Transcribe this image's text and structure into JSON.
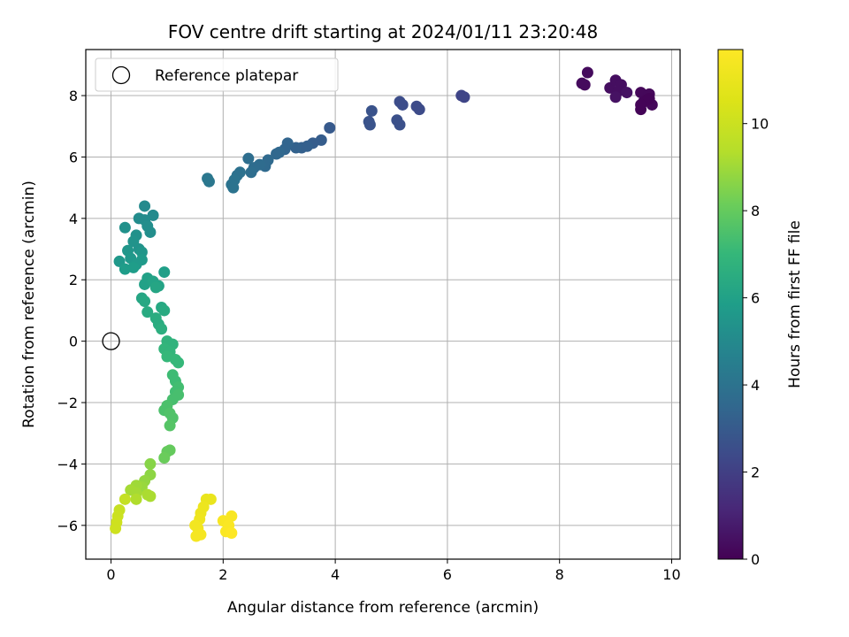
{
  "chart_data": {
    "type": "scatter",
    "title": "FOV centre drift starting at 2024/01/11 23:20:48",
    "xlabel": "Angular distance from reference (arcmin)",
    "ylabel": "Rotation from reference (arcmin)",
    "xlim": [
      -0.45,
      10.15
    ],
    "ylim": [
      -7.1,
      9.5
    ],
    "xticks": [
      0,
      2,
      4,
      6,
      8,
      10
    ],
    "yticks": [
      -6,
      -4,
      -2,
      0,
      2,
      4,
      6,
      8
    ],
    "grid": true,
    "legend": {
      "placement": "upper-left",
      "entries": [
        "Reference platepar"
      ]
    },
    "reference_point": {
      "x": 0,
      "y": 0,
      "label": "Reference platepar"
    },
    "colorbar": {
      "label": "Hours from first FF file",
      "colormap": "viridis",
      "range": [
        0,
        11.7
      ],
      "ticks": [
        0,
        2,
        4,
        6,
        8,
        10
      ]
    },
    "points": [
      {
        "x": 8.5,
        "y": 8.75,
        "c": 0.3
      },
      {
        "x": 8.4,
        "y": 8.4,
        "c": 0.3
      },
      {
        "x": 8.45,
        "y": 8.35,
        "c": 0.3
      },
      {
        "x": 8.9,
        "y": 8.25,
        "c": 0.4
      },
      {
        "x": 9.0,
        "y": 8.5,
        "c": 0.4
      },
      {
        "x": 9.1,
        "y": 8.35,
        "c": 0.4
      },
      {
        "x": 9.05,
        "y": 8.15,
        "c": 0.4
      },
      {
        "x": 9.2,
        "y": 8.1,
        "c": 0.5
      },
      {
        "x": 9.0,
        "y": 7.95,
        "c": 0.5
      },
      {
        "x": 9.45,
        "y": 8.1,
        "c": 0.2
      },
      {
        "x": 9.6,
        "y": 8.05,
        "c": 0.2
      },
      {
        "x": 9.5,
        "y": 7.8,
        "c": 0.2
      },
      {
        "x": 9.65,
        "y": 7.7,
        "c": 0.2
      },
      {
        "x": 9.45,
        "y": 7.55,
        "c": 0.1
      },
      {
        "x": 9.55,
        "y": 7.85,
        "c": 0.1
      },
      {
        "x": 9.6,
        "y": 7.9,
        "c": 0.1
      },
      {
        "x": 9.45,
        "y": 7.7,
        "c": 0.1
      },
      {
        "x": 6.25,
        "y": 8.0,
        "c": 2.2
      },
      {
        "x": 6.3,
        "y": 7.95,
        "c": 2.2
      },
      {
        "x": 5.15,
        "y": 7.8,
        "c": 2.5
      },
      {
        "x": 5.2,
        "y": 7.7,
        "c": 2.5
      },
      {
        "x": 5.45,
        "y": 7.65,
        "c": 2.4
      },
      {
        "x": 5.5,
        "y": 7.55,
        "c": 2.4
      },
      {
        "x": 5.1,
        "y": 7.2,
        "c": 2.6
      },
      {
        "x": 5.15,
        "y": 7.05,
        "c": 2.6
      },
      {
        "x": 4.65,
        "y": 7.5,
        "c": 2.7
      },
      {
        "x": 4.6,
        "y": 7.15,
        "c": 2.7
      },
      {
        "x": 4.62,
        "y": 7.05,
        "c": 2.7
      },
      {
        "x": 3.9,
        "y": 6.95,
        "c": 3.0
      },
      {
        "x": 3.75,
        "y": 6.55,
        "c": 3.1
      },
      {
        "x": 3.6,
        "y": 6.45,
        "c": 3.1
      },
      {
        "x": 3.5,
        "y": 6.35,
        "c": 3.2
      },
      {
        "x": 3.4,
        "y": 6.3,
        "c": 3.2
      },
      {
        "x": 3.3,
        "y": 6.3,
        "c": 3.3
      },
      {
        "x": 3.15,
        "y": 6.45,
        "c": 3.4
      },
      {
        "x": 3.1,
        "y": 6.25,
        "c": 3.4
      },
      {
        "x": 3.0,
        "y": 6.15,
        "c": 3.5
      },
      {
        "x": 2.95,
        "y": 6.1,
        "c": 3.5
      },
      {
        "x": 2.8,
        "y": 5.9,
        "c": 3.6
      },
      {
        "x": 2.75,
        "y": 5.7,
        "c": 3.6
      },
      {
        "x": 2.65,
        "y": 5.75,
        "c": 3.7
      },
      {
        "x": 2.55,
        "y": 5.65,
        "c": 3.7
      },
      {
        "x": 2.5,
        "y": 5.5,
        "c": 3.8
      },
      {
        "x": 2.45,
        "y": 5.95,
        "c": 3.8
      },
      {
        "x": 2.3,
        "y": 5.5,
        "c": 3.9
      },
      {
        "x": 2.25,
        "y": 5.4,
        "c": 3.9
      },
      {
        "x": 2.2,
        "y": 5.25,
        "c": 4.0
      },
      {
        "x": 2.15,
        "y": 5.1,
        "c": 4.0
      },
      {
        "x": 2.18,
        "y": 5.0,
        "c": 4.0
      },
      {
        "x": 1.72,
        "y": 5.3,
        "c": 4.2
      },
      {
        "x": 1.75,
        "y": 5.2,
        "c": 4.2
      },
      {
        "x": 0.6,
        "y": 4.4,
        "c": 5.0
      },
      {
        "x": 0.75,
        "y": 4.1,
        "c": 5.0
      },
      {
        "x": 0.5,
        "y": 4.0,
        "c": 5.1
      },
      {
        "x": 0.6,
        "y": 3.95,
        "c": 5.1
      },
      {
        "x": 0.65,
        "y": 3.75,
        "c": 5.2
      },
      {
        "x": 0.7,
        "y": 3.55,
        "c": 5.2
      },
      {
        "x": 0.25,
        "y": 3.7,
        "c": 5.3
      },
      {
        "x": 0.45,
        "y": 3.45,
        "c": 5.3
      },
      {
        "x": 0.4,
        "y": 3.25,
        "c": 5.4
      },
      {
        "x": 0.5,
        "y": 3.0,
        "c": 5.4
      },
      {
        "x": 0.55,
        "y": 2.9,
        "c": 5.5
      },
      {
        "x": 0.3,
        "y": 2.95,
        "c": 5.5
      },
      {
        "x": 0.35,
        "y": 2.7,
        "c": 5.6
      },
      {
        "x": 0.15,
        "y": 2.6,
        "c": 5.6
      },
      {
        "x": 0.45,
        "y": 2.5,
        "c": 5.7
      },
      {
        "x": 0.55,
        "y": 2.65,
        "c": 5.7
      },
      {
        "x": 0.25,
        "y": 2.35,
        "c": 5.8
      },
      {
        "x": 0.4,
        "y": 2.4,
        "c": 5.8
      },
      {
        "x": 0.95,
        "y": 2.25,
        "c": 5.9
      },
      {
        "x": 0.65,
        "y": 2.05,
        "c": 6.0
      },
      {
        "x": 0.6,
        "y": 1.85,
        "c": 6.0
      },
      {
        "x": 0.75,
        "y": 1.95,
        "c": 6.1
      },
      {
        "x": 0.85,
        "y": 1.8,
        "c": 6.1
      },
      {
        "x": 0.8,
        "y": 1.75,
        "c": 6.2
      },
      {
        "x": 0.55,
        "y": 1.4,
        "c": 6.2
      },
      {
        "x": 0.6,
        "y": 1.3,
        "c": 6.3
      },
      {
        "x": 0.9,
        "y": 1.1,
        "c": 6.3
      },
      {
        "x": 0.95,
        "y": 1.0,
        "c": 6.4
      },
      {
        "x": 0.65,
        "y": 0.95,
        "c": 6.4
      },
      {
        "x": 0.8,
        "y": 0.75,
        "c": 6.5
      },
      {
        "x": 0.85,
        "y": 0.55,
        "c": 6.5
      },
      {
        "x": 0.9,
        "y": 0.4,
        "c": 6.6
      },
      {
        "x": 1.0,
        "y": 0.0,
        "c": 6.8
      },
      {
        "x": 1.1,
        "y": -0.1,
        "c": 6.8
      },
      {
        "x": 0.95,
        "y": -0.25,
        "c": 6.9
      },
      {
        "x": 1.05,
        "y": -0.35,
        "c": 6.9
      },
      {
        "x": 1.0,
        "y": -0.5,
        "c": 7.0
      },
      {
        "x": 1.2,
        "y": -0.7,
        "c": 7.0
      },
      {
        "x": 1.15,
        "y": -0.6,
        "c": 7.0
      },
      {
        "x": 1.1,
        "y": -1.1,
        "c": 7.2
      },
      {
        "x": 1.15,
        "y": -1.3,
        "c": 7.2
      },
      {
        "x": 1.2,
        "y": -1.5,
        "c": 7.3
      },
      {
        "x": 1.15,
        "y": -1.65,
        "c": 7.3
      },
      {
        "x": 1.2,
        "y": -1.75,
        "c": 7.4
      },
      {
        "x": 1.1,
        "y": -1.9,
        "c": 7.4
      },
      {
        "x": 1.0,
        "y": -2.1,
        "c": 7.5
      },
      {
        "x": 0.95,
        "y": -2.25,
        "c": 7.5
      },
      {
        "x": 1.05,
        "y": -2.35,
        "c": 7.6
      },
      {
        "x": 1.1,
        "y": -2.5,
        "c": 7.6
      },
      {
        "x": 1.05,
        "y": -2.75,
        "c": 7.7
      },
      {
        "x": 1.05,
        "y": -3.55,
        "c": 8.0
      },
      {
        "x": 1.0,
        "y": -3.6,
        "c": 8.0
      },
      {
        "x": 0.95,
        "y": -3.8,
        "c": 8.1
      },
      {
        "x": 0.7,
        "y": -4.0,
        "c": 8.6
      },
      {
        "x": 0.7,
        "y": -4.35,
        "c": 8.7
      },
      {
        "x": 0.6,
        "y": -4.55,
        "c": 8.8
      },
      {
        "x": 0.55,
        "y": -4.75,
        "c": 8.9
      },
      {
        "x": 0.45,
        "y": -4.7,
        "c": 9.0
      },
      {
        "x": 0.35,
        "y": -4.85,
        "c": 9.1
      },
      {
        "x": 0.45,
        "y": -4.95,
        "c": 9.1
      },
      {
        "x": 0.65,
        "y": -5.0,
        "c": 9.2
      },
      {
        "x": 0.7,
        "y": -5.05,
        "c": 9.2
      },
      {
        "x": 0.45,
        "y": -5.15,
        "c": 9.3
      },
      {
        "x": 0.25,
        "y": -5.15,
        "c": 9.8
      },
      {
        "x": 0.15,
        "y": -5.5,
        "c": 9.9
      },
      {
        "x": 0.12,
        "y": -5.7,
        "c": 10.0
      },
      {
        "x": 0.1,
        "y": -5.9,
        "c": 10.1
      },
      {
        "x": 0.08,
        "y": -6.1,
        "c": 10.1
      },
      {
        "x": 1.7,
        "y": -5.15,
        "c": 11.0
      },
      {
        "x": 1.78,
        "y": -5.15,
        "c": 11.0
      },
      {
        "x": 1.65,
        "y": -5.4,
        "c": 11.1
      },
      {
        "x": 1.6,
        "y": -5.6,
        "c": 11.1
      },
      {
        "x": 1.58,
        "y": -5.8,
        "c": 11.2
      },
      {
        "x": 1.5,
        "y": -6.0,
        "c": 11.3
      },
      {
        "x": 1.55,
        "y": -6.1,
        "c": 11.3
      },
      {
        "x": 1.6,
        "y": -6.3,
        "c": 11.4
      },
      {
        "x": 1.52,
        "y": -6.35,
        "c": 11.4
      },
      {
        "x": 2.0,
        "y": -5.85,
        "c": 11.5
      },
      {
        "x": 2.15,
        "y": -5.7,
        "c": 11.5
      },
      {
        "x": 2.1,
        "y": -6.0,
        "c": 11.6
      },
      {
        "x": 2.05,
        "y": -6.2,
        "c": 11.6
      },
      {
        "x": 2.15,
        "y": -6.25,
        "c": 11.7
      }
    ]
  }
}
